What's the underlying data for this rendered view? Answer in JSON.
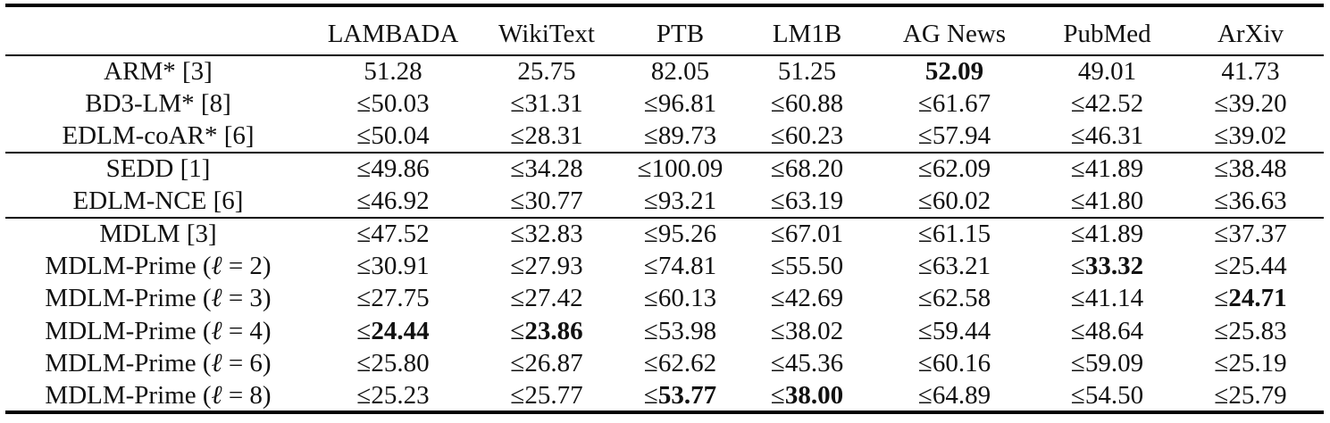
{
  "table": {
    "columns": [
      "",
      "LAMBADA",
      "WikiText",
      "PTB",
      "LM1B",
      "AG News",
      "PubMed",
      "ArXiv"
    ],
    "groups": [
      {
        "rows": [
          {
            "model": "ARM* [3]",
            "cells": [
              {
                "pre": "",
                "num": "51.28",
                "bold": false
              },
              {
                "pre": "",
                "num": "25.75",
                "bold": false
              },
              {
                "pre": "",
                "num": "82.05",
                "bold": false
              },
              {
                "pre": "",
                "num": "51.25",
                "bold": false
              },
              {
                "pre": "",
                "num": "52.09",
                "bold": true
              },
              {
                "pre": "",
                "num": "49.01",
                "bold": false
              },
              {
                "pre": "",
                "num": "41.73",
                "bold": false
              }
            ]
          },
          {
            "model": "BD3-LM* [8]",
            "cells": [
              {
                "pre": "≤",
                "num": "50.03",
                "bold": false
              },
              {
                "pre": "≤",
                "num": "31.31",
                "bold": false
              },
              {
                "pre": "≤",
                "num": "96.81",
                "bold": false
              },
              {
                "pre": "≤",
                "num": "60.88",
                "bold": false
              },
              {
                "pre": "≤",
                "num": "61.67",
                "bold": false
              },
              {
                "pre": "≤",
                "num": "42.52",
                "bold": false
              },
              {
                "pre": "≤",
                "num": "39.20",
                "bold": false
              }
            ]
          },
          {
            "model": "EDLM-coAR* [6]",
            "cells": [
              {
                "pre": "≤",
                "num": "50.04",
                "bold": false
              },
              {
                "pre": "≤",
                "num": "28.31",
                "bold": false
              },
              {
                "pre": "≤",
                "num": "89.73",
                "bold": false
              },
              {
                "pre": "≤",
                "num": "60.23",
                "bold": false
              },
              {
                "pre": "≤",
                "num": "57.94",
                "bold": false
              },
              {
                "pre": "≤",
                "num": "46.31",
                "bold": false
              },
              {
                "pre": "≤",
                "num": "39.02",
                "bold": false
              }
            ]
          }
        ]
      },
      {
        "rows": [
          {
            "model": "SEDD [1]",
            "cells": [
              {
                "pre": "≤",
                "num": "49.86",
                "bold": false
              },
              {
                "pre": "≤",
                "num": "34.28",
                "bold": false
              },
              {
                "pre": "≤",
                "num": "100.09",
                "bold": false
              },
              {
                "pre": "≤",
                "num": "68.20",
                "bold": false
              },
              {
                "pre": "≤",
                "num": "62.09",
                "bold": false
              },
              {
                "pre": "≤",
                "num": "41.89",
                "bold": false
              },
              {
                "pre": "≤",
                "num": "38.48",
                "bold": false
              }
            ]
          },
          {
            "model": "EDLM-NCE [6]",
            "cells": [
              {
                "pre": "≤",
                "num": "46.92",
                "bold": false
              },
              {
                "pre": "≤",
                "num": "30.77",
                "bold": false
              },
              {
                "pre": "≤",
                "num": "93.21",
                "bold": false
              },
              {
                "pre": "≤",
                "num": "63.19",
                "bold": false
              },
              {
                "pre": "≤",
                "num": "60.02",
                "bold": false
              },
              {
                "pre": "≤",
                "num": "41.80",
                "bold": false
              },
              {
                "pre": "≤",
                "num": "36.63",
                "bold": false
              }
            ]
          }
        ]
      },
      {
        "rows": [
          {
            "model": "MDLM [3]",
            "cells": [
              {
                "pre": "≤",
                "num": "47.52",
                "bold": false
              },
              {
                "pre": "≤",
                "num": "32.83",
                "bold": false
              },
              {
                "pre": "≤",
                "num": "95.26",
                "bold": false
              },
              {
                "pre": "≤",
                "num": "67.01",
                "bold": false
              },
              {
                "pre": "≤",
                "num": "61.15",
                "bold": false
              },
              {
                "pre": "≤",
                "num": "41.89",
                "bold": false
              },
              {
                "pre": "≤",
                "num": "37.37",
                "bold": false
              }
            ]
          },
          {
            "model": "MDLM-Prime (",
            "math": "ℓ",
            "suffix": " = 2)",
            "cells": [
              {
                "pre": "≤",
                "num": "30.91",
                "bold": false
              },
              {
                "pre": "≤",
                "num": "27.93",
                "bold": false
              },
              {
                "pre": "≤",
                "num": "74.81",
                "bold": false
              },
              {
                "pre": "≤",
                "num": "55.50",
                "bold": false
              },
              {
                "pre": "≤",
                "num": "63.21",
                "bold": false
              },
              {
                "pre": "≤",
                "num": "33.32",
                "bold": true
              },
              {
                "pre": "≤",
                "num": "25.44",
                "bold": false
              }
            ]
          },
          {
            "model": "MDLM-Prime (",
            "math": "ℓ",
            "suffix": " = 3)",
            "cells": [
              {
                "pre": "≤",
                "num": "27.75",
                "bold": false
              },
              {
                "pre": "≤",
                "num": "27.42",
                "bold": false
              },
              {
                "pre": "≤",
                "num": "60.13",
                "bold": false
              },
              {
                "pre": "≤",
                "num": "42.69",
                "bold": false
              },
              {
                "pre": "≤",
                "num": "62.58",
                "bold": false
              },
              {
                "pre": "≤",
                "num": "41.14",
                "bold": false
              },
              {
                "pre": "≤",
                "num": "24.71",
                "bold": true
              }
            ]
          },
          {
            "model": "MDLM-Prime (",
            "math": "ℓ",
            "suffix": " = 4)",
            "cells": [
              {
                "pre": "≤",
                "num": "24.44",
                "bold": true
              },
              {
                "pre": "≤",
                "num": "23.86",
                "bold": true
              },
              {
                "pre": "≤",
                "num": "53.98",
                "bold": false
              },
              {
                "pre": "≤",
                "num": "38.02",
                "bold": false
              },
              {
                "pre": "≤",
                "num": "59.44",
                "bold": false
              },
              {
                "pre": "≤",
                "num": "48.64",
                "bold": false
              },
              {
                "pre": "≤",
                "num": "25.83",
                "bold": false
              }
            ]
          },
          {
            "model": "MDLM-Prime (",
            "math": "ℓ",
            "suffix": " = 6)",
            "cells": [
              {
                "pre": "≤",
                "num": "25.80",
                "bold": false
              },
              {
                "pre": "≤",
                "num": "26.87",
                "bold": false
              },
              {
                "pre": "≤",
                "num": "62.62",
                "bold": false
              },
              {
                "pre": "≤",
                "num": "45.36",
                "bold": false
              },
              {
                "pre": "≤",
                "num": "60.16",
                "bold": false
              },
              {
                "pre": "≤",
                "num": "59.09",
                "bold": false
              },
              {
                "pre": "≤",
                "num": "25.19",
                "bold": false
              }
            ]
          },
          {
            "model": "MDLM-Prime (",
            "math": "ℓ",
            "suffix": " = 8)",
            "cells": [
              {
                "pre": "≤",
                "num": "25.23",
                "bold": false
              },
              {
                "pre": "≤",
                "num": "25.77",
                "bold": false
              },
              {
                "pre": "≤",
                "num": "53.77",
                "bold": true
              },
              {
                "pre": "≤",
                "num": "38.00",
                "bold": true
              },
              {
                "pre": "≤",
                "num": "64.89",
                "bold": false
              },
              {
                "pre": "≤",
                "num": "54.50",
                "bold": false
              },
              {
                "pre": "≤",
                "num": "25.79",
                "bold": false
              }
            ]
          }
        ]
      }
    ]
  }
}
